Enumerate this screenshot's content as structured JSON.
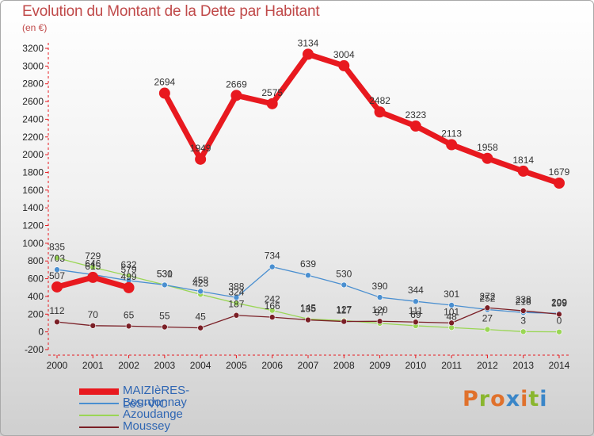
{
  "title": "Evolution du Montant de la Dette par Habitant",
  "unit": "(en €)",
  "logo": {
    "letters": [
      "P",
      "r",
      "o",
      "x",
      "i",
      "t",
      "i"
    ],
    "colors": [
      "#e0712c",
      "#8ab62e",
      "#e0712c",
      "#3a86c8",
      "#e0712c",
      "#8ab62e",
      "#3a86c8"
    ]
  },
  "chart_data": {
    "type": "line",
    "x": [
      "2000",
      "2001",
      "2002",
      "2003",
      "2004",
      "2005",
      "2006",
      "2007",
      "2008",
      "2009",
      "2010",
      "2011",
      "2012",
      "2013",
      "2014"
    ],
    "ylim": [
      -200,
      3200
    ],
    "yticks": [
      -200,
      0,
      200,
      400,
      600,
      800,
      1000,
      1200,
      1400,
      1600,
      1800,
      2000,
      2200,
      2400,
      2600,
      2800,
      3000,
      3200
    ],
    "grid": false,
    "legend_position": "bottom-left",
    "series": [
      {
        "name": "MAIZIèRES-LèS-VIC",
        "color": "#e8191f",
        "segments": [
          [
            [
              0,
              507
            ],
            [
              1,
              615
            ],
            [
              2,
              499
            ]
          ],
          [
            [
              3,
              2694
            ],
            [
              4,
              1949
            ],
            [
              5,
              2669
            ],
            [
              6,
              2575
            ],
            [
              7,
              3134
            ],
            [
              8,
              3004
            ],
            [
              9,
              2482
            ],
            [
              10,
              2323
            ],
            [
              11,
              2113
            ],
            [
              12,
              1958
            ],
            [
              13,
              1814
            ],
            [
              14,
              1679
            ]
          ]
        ],
        "labels": [
          "507",
          "615",
          "499",
          "2694",
          "1949",
          "2669",
          "2575",
          "3134",
          "3004",
          "2482",
          "2323",
          "2113",
          "1958",
          "1814",
          "1679"
        ]
      },
      {
        "name": "Bourdonnay",
        "color": "#4a8fd0",
        "segments": [
          [
            [
              0,
              703
            ],
            [
              1,
              646
            ],
            [
              2,
              579
            ],
            [
              3,
              530
            ],
            [
              4,
              458
            ],
            [
              5,
              388
            ],
            [
              6,
              734
            ],
            [
              7,
              639
            ],
            [
              8,
              530
            ],
            [
              9,
              390
            ],
            [
              10,
              344
            ],
            [
              11,
              301
            ],
            [
              12,
              252
            ],
            [
              13,
              218
            ],
            [
              14,
              209
            ]
          ]
        ],
        "labels": [
          "703",
          "646",
          "579",
          "530",
          "458",
          "388",
          "734",
          "639",
          "530",
          "390",
          "344",
          "301",
          "252",
          "218",
          "209"
        ]
      },
      {
        "name": "Azoudange",
        "color": "#9ad655",
        "segments": [
          [
            [
              0,
              835
            ],
            [
              1,
              729
            ],
            [
              2,
              632
            ],
            [
              3,
              531
            ],
            [
              4,
              423
            ],
            [
              5,
              324
            ],
            [
              6,
              242
            ],
            [
              7,
              145
            ],
            [
              8,
              127
            ],
            [
              9,
              97
            ],
            [
              10,
              69
            ],
            [
              11,
              48
            ],
            [
              12,
              27
            ],
            [
              13,
              3
            ],
            [
              14,
              0
            ]
          ]
        ],
        "labels": [
          "835",
          "729",
          "632",
          "531",
          "423",
          "324",
          "242",
          "145",
          "127",
          "97",
          "69",
          "48",
          "27",
          "3",
          "0"
        ]
      },
      {
        "name": "Moussey",
        "color": "#7a1f26",
        "segments": [
          [
            [
              0,
              112
            ],
            [
              1,
              70
            ],
            [
              2,
              65
            ],
            [
              3,
              55
            ],
            [
              4,
              45
            ],
            [
              5,
              187
            ],
            [
              6,
              166
            ],
            [
              7,
              135
            ],
            [
              8,
              117
            ],
            [
              9,
              120
            ],
            [
              10,
              111
            ],
            [
              11,
              101
            ],
            [
              12,
              272
            ],
            [
              13,
              238
            ],
            [
              14,
              199
            ]
          ]
        ],
        "labels": [
          "112",
          "70",
          "65",
          "55",
          "45",
          "187",
          "166",
          "135",
          "117",
          "120",
          "111",
          "101",
          "272",
          "238",
          "199"
        ]
      }
    ]
  }
}
